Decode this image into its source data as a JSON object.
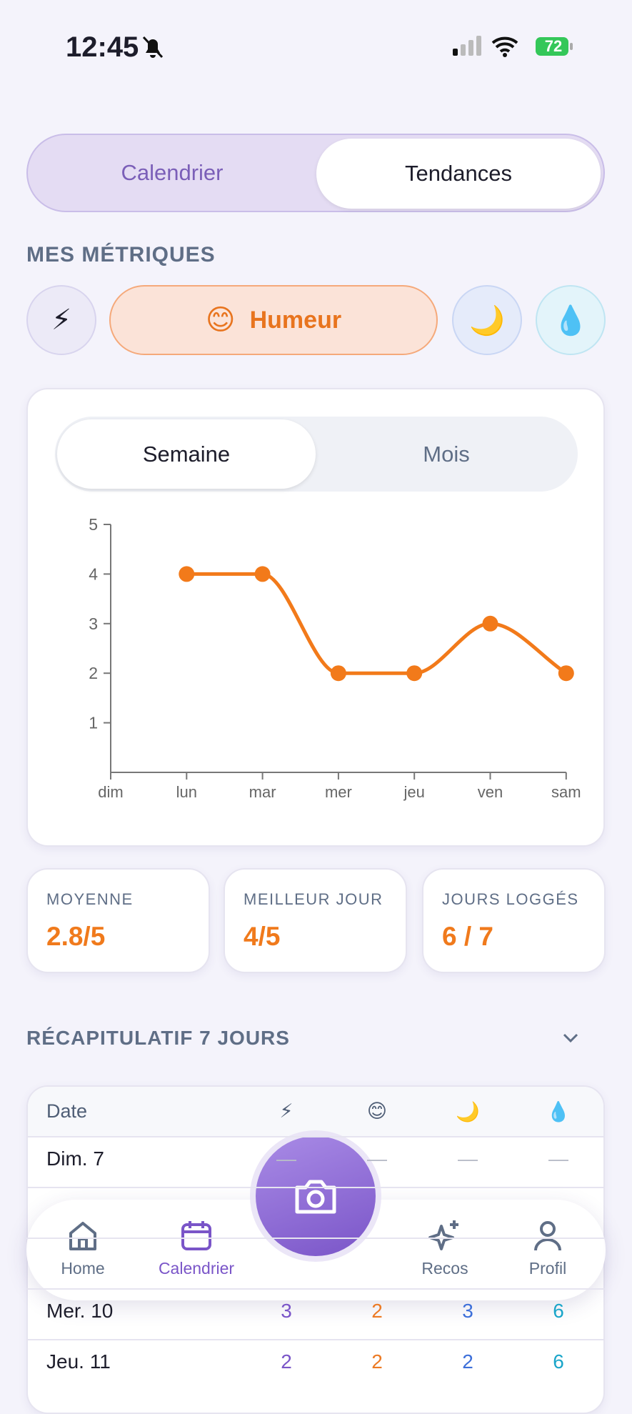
{
  "status": {
    "time": "12:45",
    "battery": "72"
  },
  "tabs": [
    "Calendrier",
    "Tendances"
  ],
  "metrics": {
    "title": "MES MÉTRIQUES",
    "chips": [
      "⚡",
      "😊",
      "🌙",
      "💧"
    ],
    "active_label": "Humeur"
  },
  "period_tabs": [
    "Semaine",
    "Mois"
  ],
  "chart_data": {
    "type": "line",
    "categories": [
      "dim",
      "lun",
      "mar",
      "mer",
      "jeu",
      "ven",
      "sam"
    ],
    "values": [
      null,
      4,
      4,
      2,
      2,
      3,
      2
    ],
    "color": "#f27a1a",
    "ylim": [
      0,
      5
    ],
    "yticks": [
      1,
      2,
      3,
      4,
      5
    ],
    "grid": false
  },
  "stats": [
    {
      "label": "MOYENNE",
      "value": "2.8/5"
    },
    {
      "label": "MEILLEUR JOUR",
      "value": "4/5"
    },
    {
      "label": "JOURS LOGGÉS",
      "value": "6 / 7"
    }
  ],
  "recap": {
    "title": "RÉCAPITULATIF 7 JOURS",
    "table": {
      "header": [
        "Date",
        "⚡",
        "😊",
        "🌙",
        "💧"
      ],
      "rows": [
        [
          "Dim. 7",
          "—",
          "—",
          "—",
          "—"
        ],
        [
          "Mer. 10",
          "3",
          "2",
          "3",
          "6"
        ],
        [
          "Jeu. 11",
          "2",
          "2",
          "2",
          "6"
        ]
      ]
    }
  },
  "nav": [
    "Home",
    "Calendrier",
    "Recos",
    "Profil"
  ]
}
